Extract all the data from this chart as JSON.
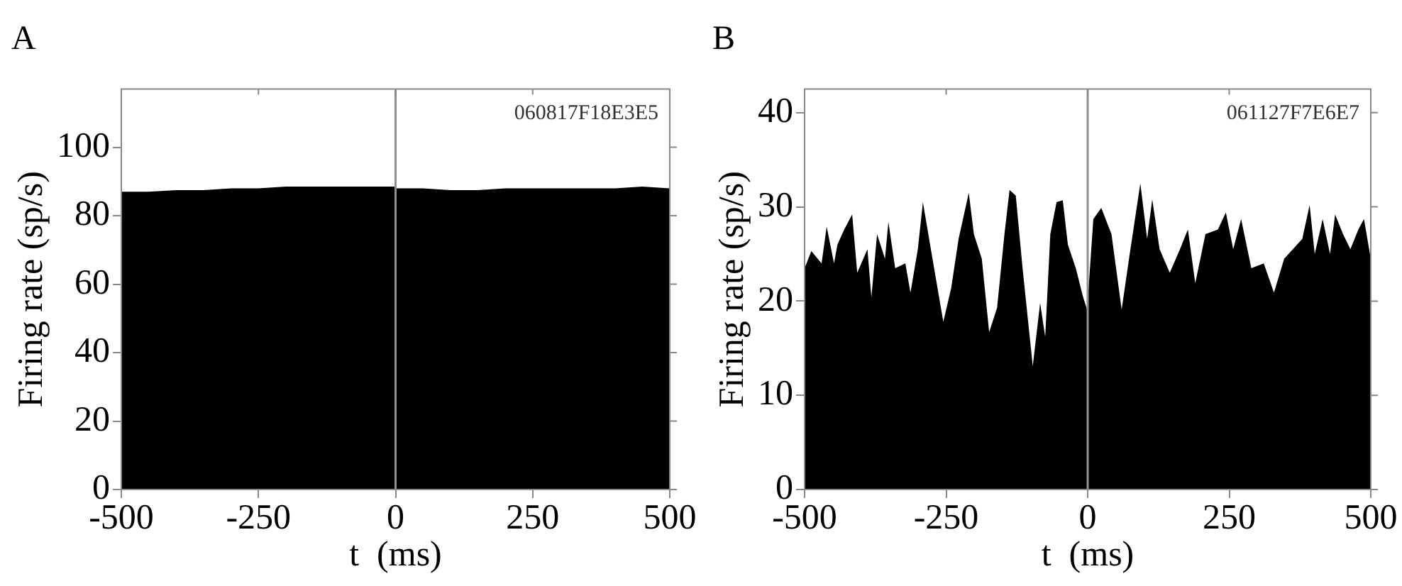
{
  "chart_data": [
    {
      "type": "area",
      "title": "A",
      "xlabel": "t  (ms)",
      "ylabel": "Firing rate (sp/s)",
      "annotations": [
        "060817F18E3E5"
      ],
      "series": [
        {
          "color": "#000000",
          "x": [
            -500,
            -450,
            -400,
            -350,
            -300,
            -250,
            -200,
            -150,
            -100,
            -50,
            -1,
            0,
            50,
            100,
            150,
            200,
            250,
            300,
            350,
            400,
            450,
            500
          ],
          "values": [
            87,
            87,
            87.5,
            87.5,
            88,
            88,
            88.5,
            88.5,
            88.5,
            88.5,
            88.5,
            88,
            88,
            87.5,
            87.5,
            88,
            88,
            88,
            88,
            88,
            88.5,
            88
          ]
        }
      ],
      "xlim": [
        -500,
        500
      ],
      "xticks": [
        -500,
        -250,
        0,
        250,
        500
      ],
      "ylim": [
        0,
        117
      ],
      "yticks": [
        0,
        20,
        40,
        60,
        80,
        100
      ],
      "ref_lines": [
        {
          "axis": "x",
          "value": 0,
          "color": "#909090"
        }
      ],
      "grid": false,
      "legend": false
    },
    {
      "type": "area",
      "title": "B",
      "xlabel": "t  (ms)",
      "ylabel": "Firing rate (sp/s)",
      "annotations": [
        "061127F7E6E7"
      ],
      "series": [
        {
          "color": "#000000",
          "x": [
            -500,
            -488,
            -470,
            -461,
            -448,
            -442,
            -430,
            -416,
            -407,
            -389,
            -382,
            -372,
            -358,
            -352,
            -340,
            -322,
            -313,
            -300,
            -291,
            -277,
            -255,
            -241,
            -228,
            -210,
            -201,
            -187,
            -174,
            -160,
            -147,
            -138,
            -127,
            -115,
            -97,
            -84,
            -75,
            -66,
            -55,
            -44,
            -35,
            -21,
            -8,
            -1,
            10,
            24,
            42,
            60,
            73,
            93,
            105,
            114,
            127,
            145,
            163,
            177,
            190,
            208,
            230,
            244,
            257,
            271,
            289,
            311,
            329,
            347,
            379,
            392,
            401,
            415,
            428,
            437,
            451,
            464,
            478,
            488,
            500
          ],
          "values": [
            23.5,
            25.3,
            24,
            27.9,
            24,
            26,
            27.6,
            29.2,
            23,
            25.5,
            20.4,
            27.1,
            24.5,
            28.4,
            23.5,
            24,
            20.9,
            25.5,
            30.5,
            25.5,
            17.8,
            21.4,
            26.6,
            31.5,
            27.1,
            24.5,
            16.7,
            19.3,
            27.1,
            31.8,
            31.2,
            23.5,
            13.1,
            19.8,
            16.2,
            27.1,
            30.5,
            30.7,
            26,
            23.5,
            20.4,
            19.1,
            28.7,
            29.9,
            27.1,
            19.1,
            24.5,
            32.5,
            26.6,
            30.8,
            25.5,
            23,
            25.5,
            27.6,
            21.9,
            27.1,
            27.6,
            29.4,
            25.5,
            28.7,
            23.5,
            24,
            20.9,
            24.5,
            26.6,
            30.2,
            25,
            28.7,
            25,
            29.2,
            27.1,
            25.5,
            27.6,
            28.7,
            24.5
          ]
        }
      ],
      "xlim": [
        -500,
        500
      ],
      "xticks": [
        -500,
        -250,
        0,
        250,
        500
      ],
      "ylim": [
        0,
        42.5
      ],
      "yticks": [
        0,
        10,
        20,
        30,
        40
      ],
      "ref_lines": [
        {
          "axis": "x",
          "value": 0,
          "color": "#909090"
        }
      ],
      "grid": false,
      "legend": false
    }
  ]
}
